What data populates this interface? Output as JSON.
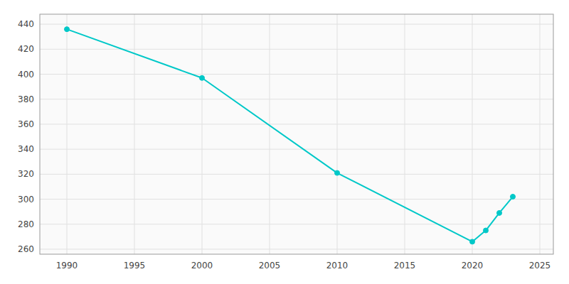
{
  "chart_data": {
    "type": "line",
    "x": [
      1990,
      2000,
      2010,
      2020,
      2021,
      2022,
      2023
    ],
    "values": [
      436,
      397,
      321,
      266,
      275,
      289,
      302
    ],
    "color": "#00C8C8",
    "marker": "circle",
    "xlim": [
      1988,
      2026
    ],
    "ylim": [
      256,
      448
    ],
    "xticks": [
      1990,
      1995,
      2000,
      2005,
      2010,
      2015,
      2020,
      2025
    ],
    "yticks": [
      260,
      280,
      300,
      320,
      340,
      360,
      380,
      400,
      420,
      440
    ],
    "grid": true
  }
}
